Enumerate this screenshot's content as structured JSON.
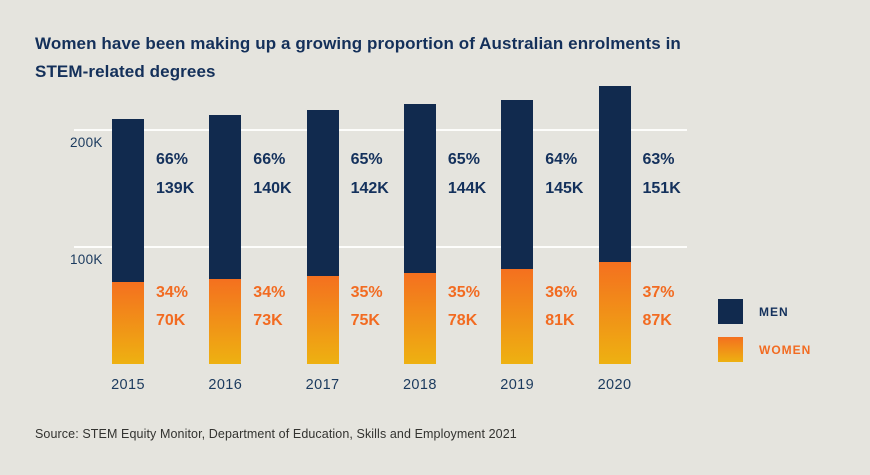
{
  "title": {
    "lines": [
      "Women have been making up a growing proportion of Australian enrolments in",
      "STEM-related degrees"
    ]
  },
  "chart_data": {
    "type": "bar",
    "stacked": true,
    "title": "Women have been making up a growing proportion of Australian enrolments in STEM-related degrees",
    "categories": [
      "2015",
      "2016",
      "2017",
      "2018",
      "2019",
      "2020"
    ],
    "unit": "K enrolments",
    "series": [
      {
        "name": "WOMEN",
        "values": [
          70,
          73,
          75,
          78,
          81,
          87
        ],
        "value_labels": [
          "70K",
          "73K",
          "75K",
          "78K",
          "81K",
          "87K"
        ],
        "percent_labels": [
          "34%",
          "34%",
          "35%",
          "35%",
          "36%",
          "37%"
        ],
        "color_top": "#f4701f",
        "color_bottom": "#eeb111"
      },
      {
        "name": "MEN",
        "values": [
          139,
          140,
          142,
          144,
          145,
          151
        ],
        "value_labels": [
          "139K",
          "140K",
          "142K",
          "144K",
          "145K",
          "151K"
        ],
        "percent_labels": [
          "66%",
          "66%",
          "65%",
          "65%",
          "64%",
          "63%"
        ],
        "color": "#112a4e"
      }
    ],
    "y_ticks": [
      {
        "value": 100,
        "label": "100K"
      },
      {
        "value": 200,
        "label": "200K"
      }
    ],
    "ylim": [
      0,
      250
    ],
    "grid": true,
    "legend_position": "right"
  },
  "legend": {
    "items": [
      {
        "label": "MEN",
        "color": "#112a4e"
      },
      {
        "label": "WOMEN",
        "color_top": "#f4701f",
        "color_bottom": "#eeb111"
      }
    ]
  },
  "source": {
    "text": "Source: STEM Equity Monitor, Department of Education, Skills and Employment 2021"
  },
  "colors": {
    "background": "#e5e4de",
    "navy": "#112a4e",
    "orange": "#f26b21",
    "gold": "#eeb111",
    "gridline": "#fdfdfb",
    "title_text": "#14305a",
    "axis_text": "#1b3a5e",
    "source_text": "#333330"
  }
}
